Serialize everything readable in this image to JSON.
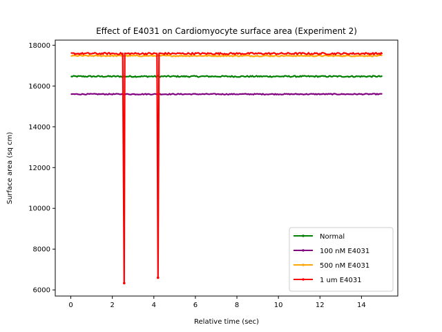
{
  "chart_data": {
    "type": "line",
    "title": "Effect of E4031 on Cardiomyocyte surface area (Experiment 2)",
    "xlabel": "Relative time (sec)",
    "ylabel": "Surface area (sq cm)",
    "xlim": [
      -0.75,
      15.75
    ],
    "ylim": [
      5700,
      18250
    ],
    "xticks": [
      0,
      2,
      4,
      6,
      8,
      10,
      12,
      14
    ],
    "yticks": [
      6000,
      8000,
      10000,
      12000,
      14000,
      16000,
      18000
    ],
    "grid": false,
    "legend_position": "lower-right",
    "x_range": [
      0,
      15
    ],
    "series": [
      {
        "name": "Normal",
        "color": "#008000",
        "base": 16470,
        "noise": 35,
        "dips": []
      },
      {
        "name": "100 nM E4031",
        "color": "#800080",
        "base": 15600,
        "noise": 25,
        "dips": []
      },
      {
        "name": "500 nM E4031",
        "color": "#ffa500",
        "base": 17480,
        "noise": 30,
        "dips": []
      },
      {
        "name": "1 um E4031",
        "color": "#ff0000",
        "base": 17590,
        "noise": 45,
        "dips": [
          {
            "x": 2.57,
            "y": 6330
          },
          {
            "x": 4.2,
            "y": 6600
          }
        ]
      }
    ]
  }
}
